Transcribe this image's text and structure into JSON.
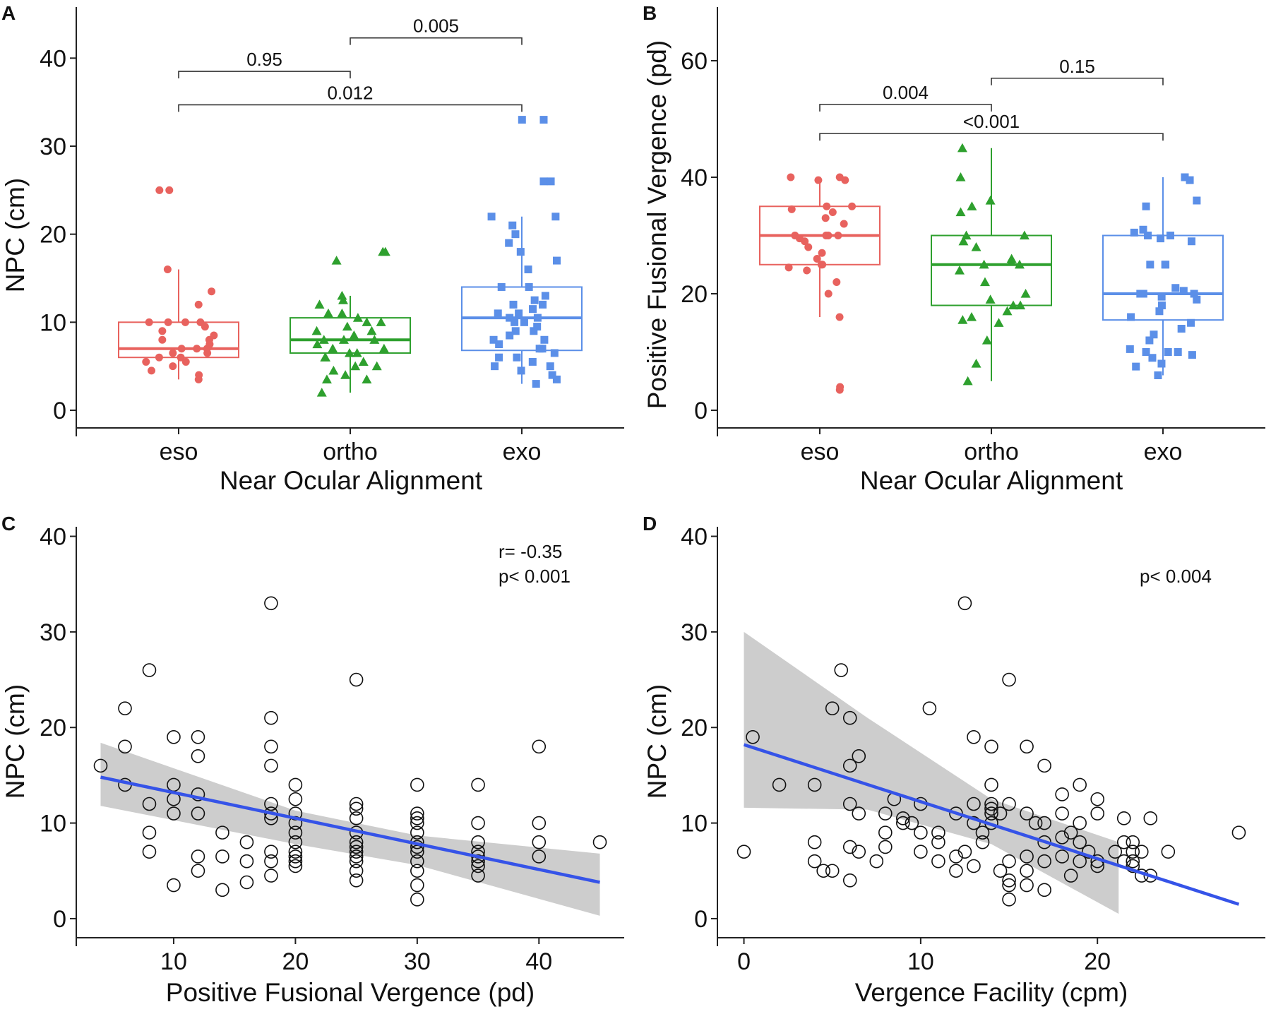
{
  "colors": {
    "eso": "#e8625e",
    "ortho": "#2ea02e",
    "exo": "#5b8fe8",
    "regression_line": "#3553e8",
    "ci_band": "#c8c8c8"
  },
  "chart_data": [
    {
      "panel": "A",
      "type": "box",
      "xlabel": "Near Ocular Alignment",
      "ylabel": "NPC (cm)",
      "ylim": [
        0,
        45
      ],
      "yticks": [
        0,
        10,
        20,
        30,
        40
      ],
      "categories": [
        "eso",
        "ortho",
        "exo"
      ],
      "boxes": [
        {
          "group": "eso",
          "marker": "circle",
          "whisker_low": 3.5,
          "q1": 6,
          "median": 7,
          "q3": 10,
          "whisker_high": 16,
          "points": [
            25,
            25,
            16,
            13.5,
            12,
            10,
            10,
            10,
            10,
            9.5,
            9,
            8.5,
            8,
            8,
            7.5,
            7,
            7,
            7,
            6.5,
            6.5,
            6,
            6,
            5.5,
            5.5,
            5,
            4.5,
            4,
            3.5
          ]
        },
        {
          "group": "ortho",
          "marker": "triangle",
          "whisker_low": 2,
          "q1": 6.5,
          "median": 8,
          "q3": 10.5,
          "whisker_high": 13,
          "points": [
            18,
            18,
            17,
            13,
            12.5,
            12,
            11,
            11,
            10.5,
            10,
            10,
            9.5,
            9,
            9,
            8.5,
            8,
            8,
            8,
            7.5,
            7,
            7,
            6.5,
            6.5,
            6,
            6,
            5.5,
            5,
            5,
            4.5,
            4,
            3.5,
            3.5,
            2
          ]
        },
        {
          "group": "exo",
          "marker": "square",
          "whisker_low": 3,
          "q1": 6.8,
          "median": 10.5,
          "q3": 14,
          "whisker_high": 22,
          "points": [
            33,
            33,
            26,
            26,
            22,
            22,
            21,
            20,
            19,
            18,
            17,
            16,
            14,
            14,
            13,
            12.5,
            12,
            12,
            11.5,
            11,
            11,
            10.5,
            10.5,
            10,
            10,
            9.5,
            9,
            9,
            8.5,
            8,
            8,
            7.5,
            7,
            7,
            6.5,
            6,
            6,
            5.5,
            5,
            5,
            4.5,
            4,
            3.5,
            3
          ]
        }
      ],
      "comparisons": [
        {
          "from": "eso",
          "to": "ortho",
          "y": 38.5,
          "label": "0.95"
        },
        {
          "from": "ortho",
          "to": "exo",
          "y": 42.3,
          "label": "0.005"
        },
        {
          "from": "eso",
          "to": "exo",
          "y": 34.7,
          "label": "0.012"
        }
      ]
    },
    {
      "panel": "B",
      "type": "box",
      "xlabel": "Near Ocular Alignment",
      "ylabel": "Positive Fusional Vergence (pd)",
      "ylim": [
        0,
        68
      ],
      "yticks": [
        0,
        20,
        40,
        60
      ],
      "categories": [
        "eso",
        "ortho",
        "exo"
      ],
      "boxes": [
        {
          "group": "eso",
          "marker": "circle",
          "whisker_low": 16,
          "q1": 25,
          "median": 30,
          "q3": 35,
          "whisker_high": 40,
          "points": [
            40,
            40,
            39.5,
            39.5,
            35,
            35,
            34.5,
            34,
            33,
            32,
            30,
            30,
            30,
            30,
            29.5,
            29,
            28,
            27,
            26,
            25,
            25,
            24.5,
            24,
            22,
            20,
            16,
            4,
            3.5
          ]
        },
        {
          "group": "ortho",
          "marker": "triangle",
          "whisker_low": 5,
          "q1": 18,
          "median": 25,
          "q3": 30,
          "whisker_high": 45,
          "points": [
            45,
            40,
            36,
            35,
            34,
            30,
            30,
            29,
            28,
            26,
            25.5,
            25,
            25,
            24,
            22,
            20,
            19,
            18,
            18,
            17,
            16,
            15.5,
            15,
            12,
            8,
            5
          ]
        },
        {
          "group": "exo",
          "marker": "square",
          "whisker_low": 6,
          "q1": 15.5,
          "median": 20,
          "q3": 30,
          "whisker_high": 40,
          "points": [
            40,
            39.5,
            36,
            35,
            31,
            30.5,
            30,
            30,
            29.5,
            29,
            25,
            25,
            25,
            21,
            20.5,
            20,
            20,
            20,
            19.5,
            19,
            18,
            17,
            16,
            15,
            14,
            13,
            12,
            10.5,
            10,
            10,
            10,
            9.5,
            9,
            8,
            7.5,
            6
          ]
        }
      ],
      "comparisons": [
        {
          "from": "eso",
          "to": "ortho",
          "y": 52.5,
          "label": "0.004"
        },
        {
          "from": "ortho",
          "to": "exo",
          "y": 57,
          "label": "0.15"
        },
        {
          "from": "eso",
          "to": "exo",
          "y": 47.5,
          "label": "<0.001"
        }
      ]
    },
    {
      "panel": "C",
      "type": "scatter",
      "xlabel": "Positive Fusional Vergence (pd)",
      "ylabel": "NPC (cm)",
      "xlim": [
        2,
        47
      ],
      "ylim": [
        -2,
        41
      ],
      "xticks": [
        10,
        20,
        30,
        40
      ],
      "yticks": [
        0,
        10,
        20,
        30,
        40
      ],
      "annotation": [
        "r= -0.35",
        "p< 0.001"
      ],
      "fit": {
        "x0": 4,
        "y0": 14.8,
        "x1": 45,
        "y1": 3.8
      },
      "ci_band": {
        "x": [
          4,
          20,
          30,
          45
        ],
        "upper": [
          18.4,
          11.3,
          8.7,
          6.8
        ],
        "lower": [
          11.8,
          7.8,
          5.6,
          0.3
        ]
      },
      "points": [
        [
          4,
          16
        ],
        [
          6,
          22
        ],
        [
          6,
          18
        ],
        [
          6,
          14
        ],
        [
          8,
          26
        ],
        [
          8,
          12
        ],
        [
          8,
          9
        ],
        [
          8,
          7
        ],
        [
          10,
          19
        ],
        [
          10,
          14
        ],
        [
          10,
          12.5
        ],
        [
          10,
          11
        ],
        [
          10,
          3.5
        ],
        [
          12,
          19
        ],
        [
          12,
          17
        ],
        [
          12,
          13
        ],
        [
          12,
          11
        ],
        [
          12,
          6.5
        ],
        [
          12,
          5
        ],
        [
          14,
          9
        ],
        [
          14,
          6.5
        ],
        [
          14,
          3
        ],
        [
          16,
          8
        ],
        [
          16,
          6
        ],
        [
          16,
          3.8
        ],
        [
          18,
          33
        ],
        [
          18,
          21
        ],
        [
          18,
          18
        ],
        [
          18,
          16
        ],
        [
          18,
          12
        ],
        [
          18,
          11
        ],
        [
          18,
          10.5
        ],
        [
          18,
          7
        ],
        [
          18,
          6
        ],
        [
          18,
          4.5
        ],
        [
          20,
          14
        ],
        [
          20,
          12.5
        ],
        [
          20,
          11
        ],
        [
          20,
          10
        ],
        [
          20,
          9
        ],
        [
          20,
          8
        ],
        [
          20,
          7
        ],
        [
          20,
          6.5
        ],
        [
          20,
          6
        ],
        [
          20,
          5.5
        ],
        [
          25,
          25
        ],
        [
          25,
          12
        ],
        [
          25,
          11.5
        ],
        [
          25,
          10.5
        ],
        [
          25,
          9
        ],
        [
          25,
          8
        ],
        [
          25,
          7.5
        ],
        [
          25,
          7
        ],
        [
          25,
          6.5
        ],
        [
          25,
          6
        ],
        [
          25,
          5
        ],
        [
          25,
          4
        ],
        [
          30,
          14
        ],
        [
          30,
          11
        ],
        [
          30,
          10.5
        ],
        [
          30,
          10
        ],
        [
          30,
          9
        ],
        [
          30,
          8
        ],
        [
          30,
          7.5
        ],
        [
          30,
          7
        ],
        [
          30,
          6
        ],
        [
          30,
          5
        ],
        [
          30,
          3.5
        ],
        [
          30,
          2
        ],
        [
          35,
          14
        ],
        [
          35,
          10
        ],
        [
          35,
          8
        ],
        [
          35,
          7
        ],
        [
          35,
          6.5
        ],
        [
          35,
          6
        ],
        [
          35,
          5.5
        ],
        [
          35,
          4.5
        ],
        [
          40,
          18
        ],
        [
          40,
          10
        ],
        [
          40,
          8
        ],
        [
          40,
          6.5
        ],
        [
          45,
          8
        ]
      ]
    },
    {
      "panel": "D",
      "type": "scatter",
      "xlabel": "Vergence Facility (cpm)",
      "ylabel": "NPC (cm)",
      "xlim": [
        -1.5,
        29.5
      ],
      "ylim": [
        -2,
        41
      ],
      "xticks": [
        0,
        10,
        20
      ],
      "yticks": [
        0,
        10,
        20,
        30,
        40
      ],
      "annotation": [
        "p< 0.004"
      ],
      "fit": {
        "x0": 0,
        "y0": 18.2,
        "x1": 28,
        "y1": 1.5
      },
      "ci_band": {
        "x": [
          0,
          7,
          14,
          21.2
        ],
        "upper": [
          30,
          21,
          12.5,
          8
        ],
        "lower": [
          11.6,
          11.4,
          7.8,
          0.5
        ]
      },
      "points": [
        [
          0,
          7
        ],
        [
          0.5,
          19
        ],
        [
          2,
          14
        ],
        [
          4,
          14
        ],
        [
          4,
          8
        ],
        [
          4,
          6
        ],
        [
          4.5,
          5
        ],
        [
          5,
          22
        ],
        [
          5,
          5
        ],
        [
          5.5,
          26
        ],
        [
          6,
          21
        ],
        [
          6,
          16
        ],
        [
          6,
          12
        ],
        [
          6,
          7.5
        ],
        [
          6,
          4
        ],
        [
          6.5,
          17
        ],
        [
          6.5,
          11
        ],
        [
          6.5,
          7
        ],
        [
          7.5,
          6
        ],
        [
          8,
          11
        ],
        [
          8,
          9
        ],
        [
          8,
          7.5
        ],
        [
          8.5,
          12.5
        ],
        [
          9,
          10.5
        ],
        [
          9,
          10
        ],
        [
          9.5,
          10
        ],
        [
          10,
          12
        ],
        [
          10,
          9
        ],
        [
          10,
          7
        ],
        [
          10.5,
          22
        ],
        [
          11,
          9
        ],
        [
          11,
          8
        ],
        [
          11,
          6
        ],
        [
          12,
          11
        ],
        [
          12,
          6.5
        ],
        [
          12,
          5
        ],
        [
          12.5,
          33
        ],
        [
          12.5,
          7
        ],
        [
          13,
          19
        ],
        [
          13,
          12
        ],
        [
          13,
          10
        ],
        [
          13,
          5.5
        ],
        [
          13.5,
          9
        ],
        [
          13.5,
          8
        ],
        [
          14,
          18
        ],
        [
          14,
          14
        ],
        [
          14,
          12
        ],
        [
          14,
          11.5
        ],
        [
          14,
          11
        ],
        [
          14,
          10
        ],
        [
          14.5,
          11
        ],
        [
          14.5,
          5
        ],
        [
          15,
          25
        ],
        [
          15,
          12
        ],
        [
          15,
          6
        ],
        [
          15,
          4
        ],
        [
          15,
          3.5
        ],
        [
          15,
          2
        ],
        [
          16,
          18
        ],
        [
          16,
          11
        ],
        [
          16,
          6.5
        ],
        [
          16,
          5
        ],
        [
          16,
          3.5
        ],
        [
          16.5,
          10
        ],
        [
          17,
          16
        ],
        [
          17,
          10
        ],
        [
          17,
          8
        ],
        [
          17,
          6
        ],
        [
          17,
          3
        ],
        [
          18,
          13
        ],
        [
          18,
          11
        ],
        [
          18,
          8.5
        ],
        [
          18,
          6.5
        ],
        [
          18.5,
          9
        ],
        [
          18.5,
          4.5
        ],
        [
          19,
          14
        ],
        [
          19,
          10
        ],
        [
          19,
          8
        ],
        [
          19,
          6
        ],
        [
          19.5,
          7
        ],
        [
          20,
          12.5
        ],
        [
          20,
          11
        ],
        [
          20,
          6
        ],
        [
          20,
          5.5
        ],
        [
          21,
          7
        ],
        [
          21.5,
          10.5
        ],
        [
          21.5,
          8
        ],
        [
          21.5,
          6
        ],
        [
          22,
          8
        ],
        [
          22,
          7
        ],
        [
          22,
          6
        ],
        [
          22,
          5.5
        ],
        [
          22.5,
          7
        ],
        [
          22.5,
          4.5
        ],
        [
          23,
          10.5
        ],
        [
          23,
          4.5
        ],
        [
          24,
          7
        ],
        [
          28,
          9
        ]
      ]
    }
  ]
}
